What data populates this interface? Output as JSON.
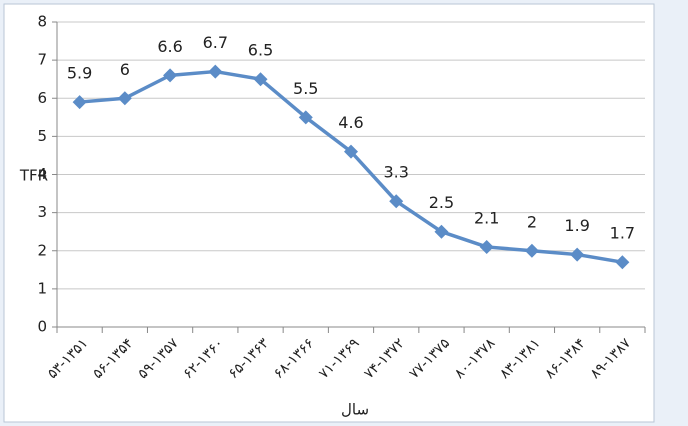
{
  "chart_data": {
    "type": "line",
    "categories": [
      "۵۳-۱۳۵۱",
      "۵۶-۱۳۵۴",
      "۵۹-۱۳۵۷",
      "۶۲-۱۳۶۰",
      "۶۵-۱۳۶۳",
      "۶۸-۱۳۶۶",
      "۷۱-۱۳۶۹",
      "۷۴-۱۳۷۲",
      "۷۷-۱۳۷۵",
      "۸۰-۱۳۷۸",
      "۸۳-۱۳۸۱",
      "۸۶-۱۳۸۴",
      "۸۹-۱۳۸۷"
    ],
    "series": [
      {
        "name": "TFR",
        "color": "#5b8cc7",
        "values": [
          5.9,
          6,
          6.6,
          6.7,
          6.5,
          5.5,
          4.6,
          3.3,
          2.5,
          2.1,
          2,
          1.9,
          1.7
        ]
      }
    ],
    "y_label": "TFR",
    "x_label": "سال",
    "ylim": [
      0,
      8
    ],
    "yticks": [
      0,
      1,
      2,
      3,
      4,
      5,
      6,
      7,
      8
    ],
    "grid": true
  }
}
